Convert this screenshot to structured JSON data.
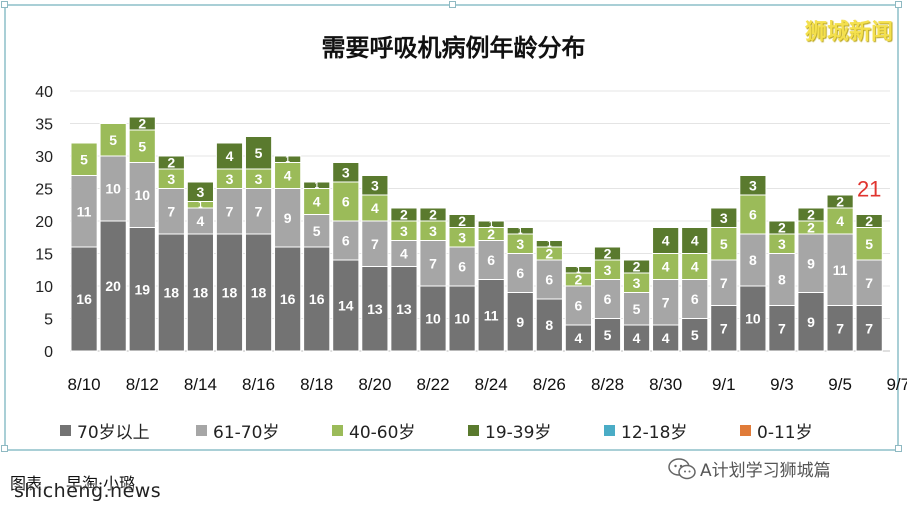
{
  "title": "需要呼吸机病例年龄分布",
  "brand": "狮城新闻",
  "footer_caption": "图表．　早淘·小璐",
  "source_text": "shicheng.news",
  "watermark_text": "A计划学习狮城篇",
  "watermark_icon": "wechat-icon",
  "highlight_total": "21",
  "colors": {
    "age_70_plus": "#737373",
    "age_61_70": "#a6a6a6",
    "age_40_60": "#9bbb59",
    "age_19_39": "#5a7a2e",
    "age_12_18": "#4aacc6",
    "age_0_11": "#e07b39",
    "highlight": "#e0342f"
  },
  "legend": [
    {
      "label": "70岁以上",
      "color": "#737373"
    },
    {
      "label": "61-70岁",
      "color": "#a6a6a6"
    },
    {
      "label": "40-60岁",
      "color": "#9bbb59"
    },
    {
      "label": "19-39岁",
      "color": "#5a7a2e"
    },
    {
      "label": "12-18岁",
      "color": "#4aacc6"
    },
    {
      "label": "0-11岁",
      "color": "#e07b39"
    }
  ],
  "chart_data": {
    "type": "bar",
    "stacked": true,
    "title": "需要呼吸机病例年龄分布",
    "ylim": [
      0,
      40
    ],
    "yticks": [
      0,
      5,
      10,
      15,
      20,
      25,
      30,
      35,
      40
    ],
    "grid": true,
    "legend_position": "bottom",
    "xtick_labels": [
      "8/10",
      "8/12",
      "8/14",
      "8/16",
      "8/18",
      "8/20",
      "8/22",
      "8/24",
      "8/26",
      "8/28",
      "8/30",
      "9/1",
      "9/3",
      "9/5",
      "9/7"
    ],
    "categories": [
      "8/10",
      "8/11",
      "8/12",
      "8/13",
      "8/14",
      "8/15",
      "8/16",
      "8/17",
      "8/18",
      "8/19",
      "8/20",
      "8/21",
      "8/22",
      "8/23",
      "8/24",
      "8/25",
      "8/26",
      "8/27",
      "8/28",
      "8/29",
      "8/30",
      "8/31",
      "9/1",
      "9/2",
      "9/3",
      "9/4",
      "9/5",
      "9/6"
    ],
    "series": [
      {
        "name": "70岁以上",
        "values": [
          16,
          20,
          19,
          18,
          18,
          18,
          18,
          16,
          16,
          14,
          13,
          13,
          10,
          10,
          11,
          9,
          8,
          4,
          5,
          4,
          4,
          5,
          7,
          10,
          7,
          9,
          7,
          7
        ]
      },
      {
        "name": "61-70岁",
        "values": [
          11,
          10,
          10,
          7,
          4,
          7,
          7,
          9,
          5,
          6,
          7,
          4,
          7,
          6,
          6,
          6,
          6,
          6,
          6,
          5,
          7,
          6,
          7,
          8,
          8,
          9,
          11,
          7
        ]
      },
      {
        "name": "40-60岁",
        "values": [
          5,
          5,
          5,
          3,
          1,
          3,
          3,
          4,
          4,
          6,
          4,
          3,
          3,
          3,
          2,
          3,
          2,
          2,
          3,
          3,
          4,
          4,
          5,
          6,
          3,
          2,
          4,
          5
        ]
      },
      {
        "name": "19-39岁",
        "values": [
          0,
          0,
          2,
          2,
          3,
          4,
          5,
          1,
          1,
          3,
          3,
          2,
          2,
          2,
          1,
          1,
          1,
          1,
          2,
          2,
          4,
          4,
          3,
          3,
          2,
          2,
          2,
          2
        ]
      },
      {
        "name": "12-18岁",
        "values": [
          0,
          0,
          0,
          0,
          0,
          0,
          0,
          0,
          0,
          0,
          0,
          0,
          0,
          0,
          0,
          0,
          0,
          0,
          0,
          0,
          0,
          0,
          0,
          0,
          0,
          0,
          0,
          0
        ]
      },
      {
        "name": "0-11岁",
        "values": [
          0,
          0,
          0,
          0,
          0,
          0,
          0,
          0,
          0,
          0,
          0,
          0,
          0,
          0,
          0,
          0,
          0,
          0,
          0,
          0,
          0,
          0,
          0,
          0,
          0,
          0,
          0,
          0
        ]
      }
    ]
  }
}
